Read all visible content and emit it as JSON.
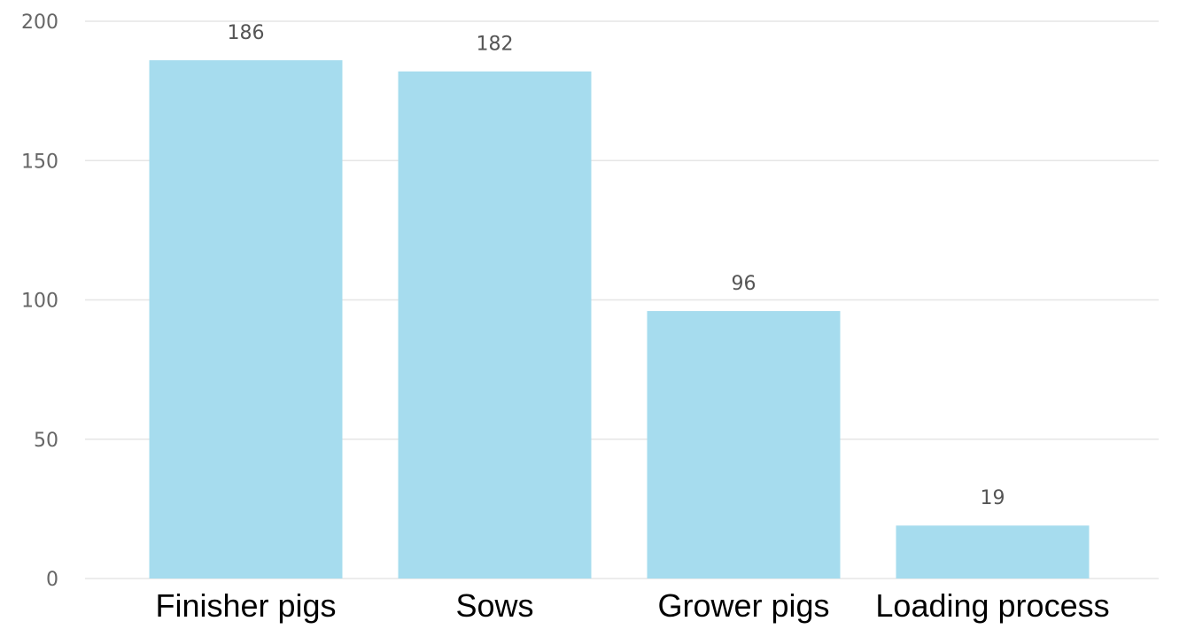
{
  "chart_data": {
    "type": "bar",
    "categories": [
      "Finisher pigs",
      "Sows",
      "Grower pigs",
      "Loading process"
    ],
    "values": [
      186,
      182,
      96,
      19
    ],
    "data_labels": [
      "186",
      "182",
      "96",
      "19"
    ],
    "title": "",
    "xlabel": "",
    "ylabel": "",
    "ylim": [
      0,
      200
    ],
    "yticks": [
      0,
      50,
      100,
      150,
      200
    ],
    "ytick_labels": [
      "0",
      "50",
      "100",
      "150",
      "200"
    ],
    "grid": "horizontal",
    "legend": "none",
    "bar_color": "#a6dcee",
    "gridline_color": "#e6e6e6"
  }
}
